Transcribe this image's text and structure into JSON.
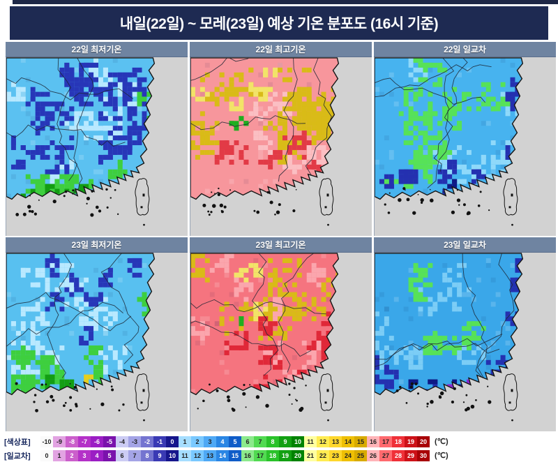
{
  "title": "내일(22일) ~ 모레(23일) 예상 기온 분포도 (16시 기준)",
  "panels": [
    {
      "id": "min22",
      "label": "22일 최저기온"
    },
    {
      "id": "max22",
      "label": "22일 최고기온"
    },
    {
      "id": "range22",
      "label": "22일 일교차"
    },
    {
      "id": "min23",
      "label": "23일 최저기온"
    },
    {
      "id": "max23",
      "label": "23일 최고기온"
    },
    {
      "id": "range23",
      "label": "23일 일교차"
    }
  ],
  "legend": {
    "palette": [
      "#fafafa",
      "#e2a3e2",
      "#cb5fcb",
      "#b431c8",
      "#9b1ec4",
      "#7a12ac",
      "#ccccf4",
      "#a4a4e6",
      "#7474d0",
      "#3a3ab4",
      "#16168c",
      "#a6deff",
      "#7ac9ff",
      "#4fa9f5",
      "#2a86e4",
      "#0f5cc8",
      "#8cea8c",
      "#52da52",
      "#2ac22a",
      "#12a012",
      "#028202",
      "#ffffa0",
      "#ffec52",
      "#fed72c",
      "#efc004",
      "#d8ab00",
      "#ffb4b8",
      "#ff6a6e",
      "#ef3038",
      "#cd1218",
      "#a80206"
    ],
    "rows": [
      {
        "label": "[색상표]",
        "unit": "(℃)",
        "values": [
          -10,
          -9,
          -8,
          -7,
          -6,
          -5,
          -4,
          -3,
          -2,
          -1,
          0,
          1,
          2,
          3,
          4,
          5,
          6,
          7,
          8,
          9,
          10,
          11,
          12,
          13,
          14,
          15,
          16,
          17,
          18,
          19,
          20
        ]
      },
      {
        "label": "[일교차]",
        "unit": "(℃)",
        "values": [
          0,
          1,
          2,
          3,
          4,
          5,
          6,
          7,
          8,
          9,
          10,
          11,
          12,
          13,
          14,
          15,
          16,
          17,
          18,
          19,
          20,
          21,
          22,
          23,
          24,
          25,
          26,
          27,
          28,
          29,
          30
        ]
      }
    ]
  },
  "colors": {
    "page_bg": "#ffffff",
    "top_strip": "#1e2746",
    "title_bg": "#1e2a52",
    "header_bg": "#6f84a1",
    "sea": "#d2d2d2",
    "legend_label": "#16265c",
    "coastline": "#141414",
    "province_border": "#1c2433"
  },
  "map_themes": {
    "min22": {
      "base": "#5bc1f1",
      "clusters": [
        {
          "color": "#b9e9ff",
          "n": 9,
          "region": [
            5,
            5,
            190,
            170
          ],
          "spread": 20,
          "cells": 14
        },
        {
          "color": "#2736b8",
          "n": 12,
          "region": [
            35,
            5,
            200,
            150
          ],
          "spread": 24,
          "cells": 24
        },
        {
          "color": "#2736b8",
          "n": 3,
          "region": [
            0,
            115,
            40,
            150
          ],
          "spread": 10,
          "cells": 8
        },
        {
          "color": "#3ecf3e",
          "n": 8,
          "region": [
            5,
            150,
            160,
            196
          ],
          "spread": 14,
          "cells": 12
        },
        {
          "color": "#3ecf3e",
          "n": 3,
          "region": [
            194,
            40,
            210,
            100
          ],
          "spread": 7,
          "cells": 7
        },
        {
          "color": "#139e13",
          "n": 4,
          "region": [
            15,
            168,
            120,
            198
          ],
          "spread": 8,
          "cells": 6
        }
      ]
    },
    "max22": {
      "base": "#f7969c",
      "clusters": [
        {
          "color": "#d9bb17",
          "n": 12,
          "region": [
            0,
            0,
            220,
            130
          ],
          "spread": 24,
          "cells": 22
        },
        {
          "color": "#f2e468",
          "n": 5,
          "region": [
            0,
            10,
            120,
            120
          ],
          "spread": 10,
          "cells": 8
        },
        {
          "color": "#d9bb17",
          "n": 4,
          "region": [
            120,
            90,
            210,
            160
          ],
          "spread": 16,
          "cells": 14
        },
        {
          "color": "#e23a46",
          "n": 7,
          "region": [
            40,
            110,
            200,
            185
          ],
          "spread": 14,
          "cells": 10
        },
        {
          "color": "#fbbfc3",
          "n": 6,
          "region": [
            10,
            20,
            200,
            170
          ],
          "spread": 14,
          "cells": 10
        },
        {
          "color": "#1fae1f",
          "n": 2,
          "region": [
            55,
            75,
            95,
            125
          ],
          "spread": 4,
          "cells": 5
        }
      ]
    },
    "range22": {
      "base": "#47b3ef",
      "clusters": [
        {
          "color": "#8fd9fa",
          "n": 7,
          "region": [
            0,
            0,
            200,
            170
          ],
          "spread": 18,
          "cells": 12
        },
        {
          "color": "#57e257",
          "n": 9,
          "region": [
            55,
            5,
            170,
            165
          ],
          "spread": 20,
          "cells": 20
        },
        {
          "color": "#57e257",
          "n": 3,
          "region": [
            0,
            100,
            60,
            180
          ],
          "spread": 8,
          "cells": 7
        },
        {
          "color": "#2430b0",
          "n": 8,
          "region": [
            10,
            150,
            210,
            198
          ],
          "spread": 10,
          "cells": 8
        },
        {
          "color": "#2430b0",
          "n": 4,
          "region": [
            190,
            20,
            212,
            150
          ],
          "spread": 8,
          "cells": 8
        },
        {
          "color": "#0e1a86",
          "n": 3,
          "region": [
            60,
            175,
            180,
            200
          ],
          "spread": 6,
          "cells": 5
        }
      ]
    },
    "min23": {
      "base": "#58c0f0",
      "clusters": [
        {
          "color": "#b9e9ff",
          "n": 10,
          "region": [
            5,
            5,
            195,
            170
          ],
          "spread": 22,
          "cells": 16
        },
        {
          "color": "#2736b8",
          "n": 7,
          "region": [
            30,
            5,
            190,
            120
          ],
          "spread": 12,
          "cells": 10
        },
        {
          "color": "#3ecf3e",
          "n": 9,
          "region": [
            5,
            145,
            170,
            198
          ],
          "spread": 14,
          "cells": 13
        },
        {
          "color": "#3ecf3e",
          "n": 3,
          "region": [
            194,
            35,
            212,
            105
          ],
          "spread": 7,
          "cells": 8
        },
        {
          "color": "#139e13",
          "n": 4,
          "region": [
            20,
            170,
            130,
            200
          ],
          "spread": 8,
          "cells": 6
        },
        {
          "color": "#e8cf1d",
          "n": 1,
          "region": [
            108,
            176,
            118,
            184
          ],
          "spread": 3,
          "cells": 3
        }
      ]
    },
    "max23": {
      "base": "#f5747f",
      "clusters": [
        {
          "color": "#d9bb17",
          "n": 10,
          "region": [
            0,
            0,
            220,
            120
          ],
          "spread": 22,
          "cells": 20
        },
        {
          "color": "#f2e468",
          "n": 4,
          "region": [
            10,
            15,
            130,
            110
          ],
          "spread": 9,
          "cells": 7
        },
        {
          "color": "#fba6ad",
          "n": 8,
          "region": [
            0,
            0,
            210,
            180
          ],
          "spread": 16,
          "cells": 12
        },
        {
          "color": "#e02838",
          "n": 9,
          "region": [
            0,
            100,
            200,
            195
          ],
          "spread": 16,
          "cells": 14
        },
        {
          "color": "#1fae1f",
          "n": 1,
          "region": [
            58,
            80,
            72,
            95
          ],
          "spread": 3,
          "cells": 4
        }
      ]
    },
    "range23": {
      "base": "#3aa7e9",
      "clusters": [
        {
          "color": "#7ccdf6",
          "n": 8,
          "region": [
            0,
            0,
            200,
            170
          ],
          "spread": 18,
          "cells": 12
        },
        {
          "color": "#57e257",
          "n": 6,
          "region": [
            60,
            15,
            170,
            160
          ],
          "spread": 14,
          "cells": 13
        },
        {
          "color": "#2430b0",
          "n": 9,
          "region": [
            5,
            150,
            205,
            200
          ],
          "spread": 11,
          "cells": 9
        },
        {
          "color": "#2430b0",
          "n": 4,
          "region": [
            185,
            10,
            212,
            120
          ],
          "spread": 8,
          "cells": 8
        },
        {
          "color": "#0e1a86",
          "n": 3,
          "region": [
            40,
            170,
            170,
            200
          ],
          "spread": 6,
          "cells": 6
        },
        {
          "color": "#8a2bd0",
          "n": 2,
          "region": [
            70,
            185,
            150,
            200
          ],
          "spread": 4,
          "cells": 4
        }
      ]
    }
  }
}
